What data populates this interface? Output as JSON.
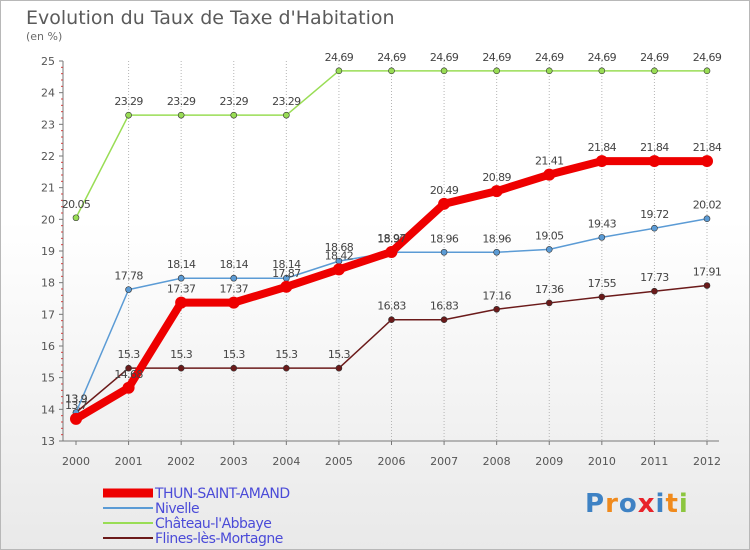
{
  "chart_data": {
    "type": "line",
    "title": "Evolution du Taux de Taxe d'Habitation",
    "subtitle": "(en %)",
    "xlabel": "",
    "ylabel": "",
    "categories": [
      "2000",
      "2001",
      "2002",
      "2003",
      "2004",
      "2005",
      "2006",
      "2007",
      "2008",
      "2009",
      "2010",
      "2011",
      "2012"
    ],
    "ylim": [
      13,
      25
    ],
    "yticks": [
      "13",
      "14",
      "15",
      "16",
      "17",
      "18",
      "19",
      "20",
      "21",
      "22",
      "23",
      "24",
      "25"
    ],
    "grid": "vertical-dotted",
    "legend_position": "bottom-left",
    "series": [
      {
        "name": "Flines-lès-Mortagne",
        "color": "#6b1a1a",
        "values": [
          13.9,
          15.3,
          15.3,
          15.3,
          15.3,
          15.3,
          16.83,
          16.83,
          17.16,
          17.36,
          17.55,
          17.73,
          17.91
        ],
        "labels": [
          "13.9",
          "15.3",
          "15.3",
          "15.3",
          "15.3",
          "15.3",
          "16.83",
          "16.83",
          "17.16",
          "17.36",
          "17.55",
          "17.73",
          "17.91"
        ]
      },
      {
        "name": "Nivelle",
        "color": "#5b9bd5",
        "values": [
          13.9,
          17.78,
          18.14,
          18.14,
          18.14,
          18.68,
          18.96,
          18.96,
          18.96,
          19.05,
          19.43,
          19.72,
          20.02
        ],
        "labels": [
          "13.9",
          "17.78",
          "18.14",
          "18.14",
          "18.14",
          "18.68",
          "18.96",
          "18.96",
          "18.96",
          "19.05",
          "19.43",
          "19.72",
          "20.02"
        ]
      },
      {
        "name": "Château-l'Abbaye",
        "color": "#99dd55",
        "values": [
          20.05,
          23.29,
          23.29,
          23.29,
          23.29,
          24.69,
          24.69,
          24.69,
          24.69,
          24.69,
          24.69,
          24.69,
          24.69
        ],
        "labels": [
          "20.05",
          "23.29",
          "23.29",
          "23.29",
          "23.29",
          "24.69",
          "24.69",
          "24.69",
          "24.69",
          "24.69",
          "24.69",
          "24.69",
          "24.69"
        ]
      },
      {
        "name": "THUN-SAINT-AMAND",
        "color": "#ee0000",
        "values": [
          13.7,
          14.68,
          17.37,
          17.37,
          17.87,
          18.42,
          18.97,
          20.49,
          20.89,
          21.41,
          21.84,
          21.84,
          21.84
        ],
        "labels": [
          "13.7",
          "14.68",
          "17.37",
          "17.37",
          "17.87",
          "18.42",
          "18.97",
          "20.49",
          "20.89",
          "21.41",
          "21.84",
          "21.84",
          "21.84"
        ]
      }
    ],
    "legend_order": [
      "THUN-SAINT-AMAND",
      "Nivelle",
      "Château-l'Abbaye",
      "Flines-lès-Mortagne"
    ]
  },
  "brand": {
    "logo_text": "Proxiti",
    "letter_colors": [
      "#3e82c4",
      "#f08a1c",
      "#3e82c4",
      "#e8232a",
      "#3e82c4",
      "#f08a1c",
      "#8cc63f"
    ]
  }
}
